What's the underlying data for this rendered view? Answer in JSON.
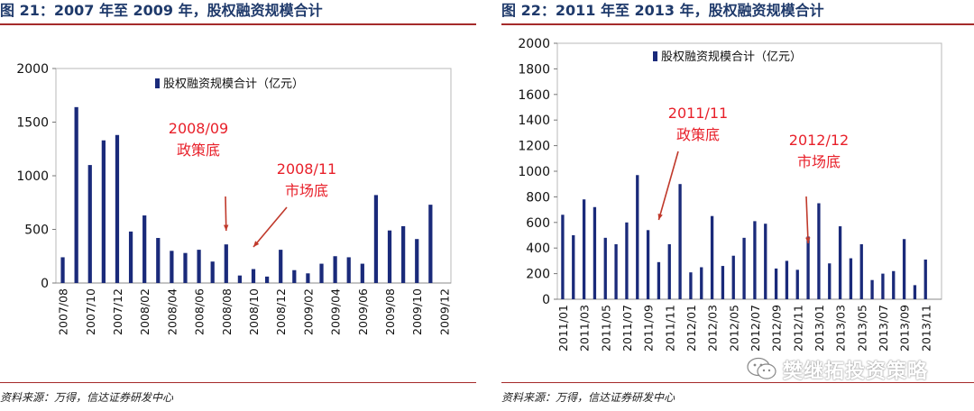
{
  "watermark": "樊继拓投资策略",
  "charts": [
    {
      "fig_title": "图 21：2007 年至 2009 年，股权融资规模合计",
      "source": "资料来源：万得，信达证券研发中心",
      "chart_data": {
        "type": "bar",
        "legend": "股权融资规模合计（亿元）",
        "ylim": [
          0,
          2000
        ],
        "yticks": [
          0,
          500,
          1000,
          1500,
          2000
        ],
        "categories": [
          "2007/08",
          "2007/09",
          "2007/10",
          "2007/11",
          "2007/12",
          "2008/01",
          "2008/02",
          "2008/03",
          "2008/04",
          "2008/05",
          "2008/06",
          "2008/07",
          "2008/08",
          "2008/09",
          "2008/10",
          "2008/11",
          "2008/12",
          "2009/01",
          "2009/02",
          "2009/03",
          "2009/04",
          "2009/05",
          "2009/06",
          "2009/07",
          "2009/08",
          "2009/09",
          "2009/10",
          "2009/11",
          "2009/12"
        ],
        "values": [
          240,
          1640,
          1100,
          1330,
          1380,
          480,
          630,
          420,
          300,
          280,
          310,
          200,
          360,
          70,
          130,
          60,
          310,
          120,
          90,
          180,
          250,
          240,
          180,
          820,
          490,
          530,
          410,
          730,
          0
        ],
        "annotations": [
          {
            "line1": "2008/09",
            "line2": "政策底",
            "target": "2008/08"
          },
          {
            "line1": "2008/11",
            "line2": "市场底",
            "target": "2008/10"
          }
        ]
      }
    },
    {
      "fig_title": "图 22：2011 年至 2013 年，股权融资规模合计",
      "source": "资料来源：万得，信达证券研发中心",
      "chart_data": {
        "type": "bar",
        "legend": "股权融资规模合计（亿元）",
        "ylim": [
          0,
          2000
        ],
        "yticks": [
          0,
          200,
          400,
          600,
          800,
          1000,
          1200,
          1400,
          1600,
          1800,
          2000
        ],
        "categories": [
          "2011/01",
          "2011/02",
          "2011/03",
          "2011/04",
          "2011/05",
          "2011/06",
          "2011/07",
          "2011/08",
          "2011/09",
          "2011/10",
          "2011/11",
          "2011/12",
          "2012/01",
          "2012/02",
          "2012/03",
          "2012/04",
          "2012/05",
          "2012/06",
          "2012/07",
          "2012/08",
          "2012/09",
          "2012/10",
          "2012/11",
          "2012/12",
          "2013/01",
          "2013/02",
          "2013/03",
          "2013/04",
          "2013/05",
          "2013/06",
          "2013/07",
          "2013/08",
          "2013/09",
          "2013/10",
          "2013/11",
          "2013/12"
        ],
        "values": [
          660,
          500,
          780,
          720,
          480,
          430,
          600,
          970,
          540,
          290,
          430,
          900,
          210,
          250,
          650,
          260,
          340,
          480,
          610,
          590,
          240,
          300,
          230,
          490,
          750,
          280,
          570,
          320,
          430,
          150,
          200,
          220,
          470,
          110,
          310,
          0
        ],
        "annotations": [
          {
            "line1": "2011/11",
            "line2": "政策底",
            "target": "2011/10"
          },
          {
            "line1": "2012/12",
            "line2": "市场底",
            "target": "2012/12"
          }
        ]
      }
    }
  ]
}
